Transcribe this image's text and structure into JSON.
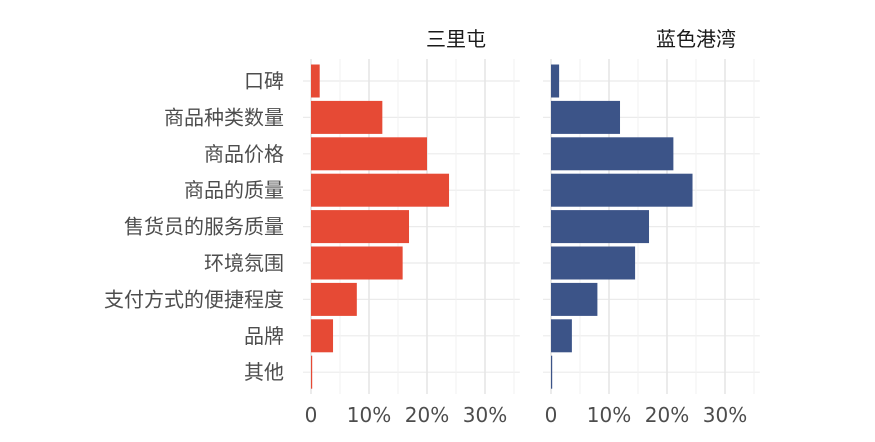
{
  "chart_data": {
    "type": "bar",
    "orientation": "horizontal",
    "categories": [
      "口碑",
      "商品种类数量",
      "商品价格",
      "商品的质量",
      "售货员的服务质量",
      "环境氛围",
      "支付方式的便捷程度",
      "品牌",
      "其他"
    ],
    "series": [
      {
        "name": "三里屯",
        "color": "#e64a35",
        "values": [
          1.5,
          12.3,
          20.0,
          23.8,
          16.9,
          15.8,
          7.9,
          3.8,
          0.2
        ]
      },
      {
        "name": "蓝色港湾",
        "color": "#3c5488",
        "values": [
          1.4,
          11.9,
          21.1,
          24.4,
          16.9,
          14.5,
          8.0,
          3.6,
          0.2
        ]
      }
    ],
    "facet_layout": "side-by-side, shared category axis",
    "xlim": [
      0,
      36
    ],
    "x_ticks": [
      "0",
      "10%",
      "20%",
      "30%"
    ],
    "x_tick_values": [
      0,
      10,
      20,
      30
    ],
    "grid": true,
    "xlabel": "",
    "ylabel": ""
  }
}
